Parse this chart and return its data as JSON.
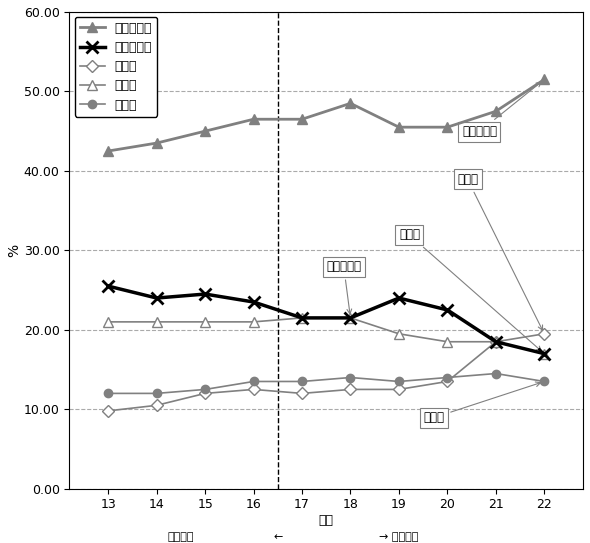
{
  "years": [
    13,
    14,
    15,
    16,
    17,
    18,
    19,
    20,
    21,
    22
  ],
  "gimu": [
    42.5,
    43.5,
    45.0,
    46.5,
    46.5,
    48.5,
    45.5,
    45.5,
    47.5,
    51.5
  ],
  "toshi": [
    25.5,
    24.0,
    24.5,
    23.5,
    21.5,
    21.5,
    24.0,
    22.5,
    18.5,
    17.0
  ],
  "fujo": [
    9.8,
    10.5,
    12.0,
    12.5,
    12.0,
    12.5,
    12.5,
    13.5,
    18.5,
    19.5
  ],
  "jinken": [
    21.0,
    21.0,
    21.0,
    21.0,
    21.5,
    21.5,
    19.5,
    18.5,
    18.5,
    17.0
  ],
  "kohai": [
    12.0,
    12.0,
    12.5,
    13.5,
    13.5,
    14.0,
    13.5,
    14.0,
    14.5,
    13.5
  ],
  "ylim": [
    0.0,
    60.0
  ],
  "yticks": [
    0.0,
    10.0,
    20.0,
    30.0,
    40.0,
    50.0,
    60.0
  ],
  "ylabel": "%",
  "xlabel": "年度",
  "vline_x": 16.5,
  "old_label": "旧浜松市",
  "new_label": "新浜松市",
  "legend_labels": [
    "義務的経費",
    "投資的経費",
    "扶助費",
    "人件費",
    "公債費"
  ],
  "annotation_gimu": "義務的経費",
  "annotation_fujo": "扶助費",
  "annotation_jinken": "人件費",
  "annotation_toshi": "投資的経費",
  "annotation_kohai": "公債費",
  "line_color_gimu": "#808080",
  "line_color_toshi": "#000000",
  "line_color_fujo": "#808080",
  "line_color_jinken": "#808080",
  "line_color_kohai": "#808080",
  "bg_color": "#ffffff",
  "border_color": "#000000"
}
